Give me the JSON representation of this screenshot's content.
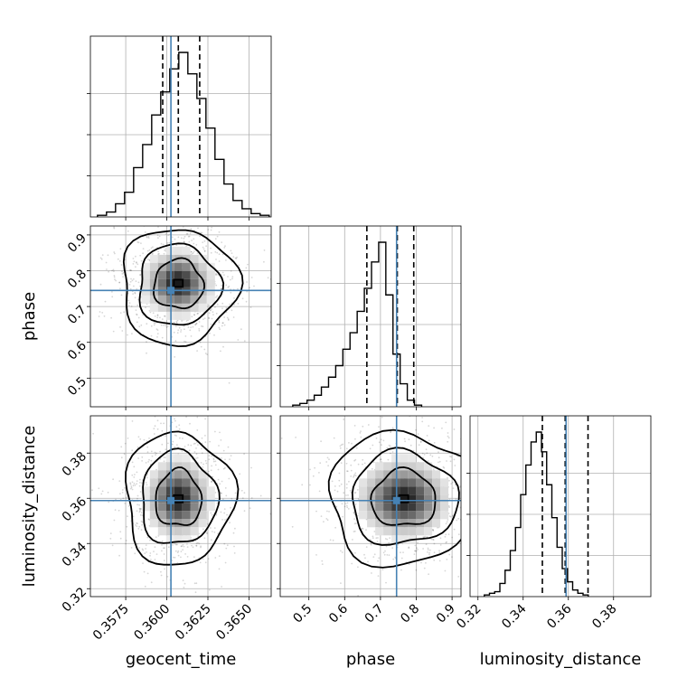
{
  "chart_data": {
    "type": "corner",
    "parameters": [
      {
        "name": "geocent_time",
        "label": "geocent_time",
        "range": [
          0.35535,
          0.36635
        ],
        "ticks": [
          0.3575,
          0.36,
          0.3625,
          0.365
        ],
        "tick_labels": [
          "0.3575",
          "0.3600",
          "0.3625",
          "0.3650"
        ],
        "truth": 0.36025,
        "quantiles": [
          0.35975,
          0.3607,
          0.362
        ],
        "hist_edges_start": 0.35578,
        "hist_bin_width": 0.00055,
        "hist_counts": [
          1,
          3,
          8,
          15,
          30,
          44,
          62,
          76,
          90,
          100,
          87,
          72,
          54,
          35,
          20,
          10,
          5,
          2,
          1
        ]
      },
      {
        "name": "phase",
        "label": "phase",
        "range": [
          0.42,
          0.925
        ],
        "ticks": [
          0.5,
          0.6,
          0.7,
          0.8,
          0.9
        ],
        "tick_labels": [
          "0.5",
          "0.6",
          "0.7",
          "0.8",
          "0.9"
        ],
        "truth": 0.745,
        "quantiles": [
          0.662,
          0.747,
          0.793
        ],
        "hist_edges_start": 0.455,
        "hist_bin_width": 0.02,
        "hist_counts": [
          1,
          2,
          4,
          7,
          12,
          18,
          25,
          35,
          45,
          58,
          72,
          88,
          100,
          68,
          32,
          14,
          4,
          1
        ]
      },
      {
        "name": "luminosity_distance",
        "label": "luminosity_distance",
        "range": [
          0.3165,
          0.3965
        ],
        "ticks": [
          0.32,
          0.34,
          0.36,
          0.38
        ],
        "tick_labels": [
          "0.32",
          "0.34",
          "0.36",
          "0.38"
        ],
        "truth": 0.359,
        "quantiles": [
          0.3485,
          0.3586,
          0.3687
        ],
        "hist_edges_start": 0.3228,
        "hist_bin_width": 0.0023,
        "hist_counts": [
          1,
          2,
          3,
          8,
          16,
          28,
          42,
          62,
          80,
          94,
          100,
          88,
          68,
          48,
          30,
          17,
          9,
          4,
          2,
          1
        ]
      }
    ],
    "pairs": [
      {
        "x": "geocent_time",
        "y": "phase",
        "mode_xy": [
          0.3607,
          0.765
        ],
        "spread_xy": [
          0.0015,
          0.065
        ],
        "contour_levels": [
          0.4,
          0.7,
          0.9
        ]
      },
      {
        "x": "geocent_time",
        "y": "luminosity_distance",
        "mode_xy": [
          0.3607,
          0.3598
        ],
        "spread_xy": [
          0.0014,
          0.0125
        ],
        "contour_levels": [
          0.4,
          0.7,
          0.9
        ]
      },
      {
        "x": "phase",
        "y": "luminosity_distance",
        "mode_xy": [
          0.765,
          0.3598
        ],
        "spread_xy": [
          0.09,
          0.0125
        ],
        "contour_levels": [
          0.4,
          0.7,
          0.9
        ]
      }
    ],
    "grid": true,
    "truth_color": "#4682b4",
    "line_color": "#000000"
  }
}
